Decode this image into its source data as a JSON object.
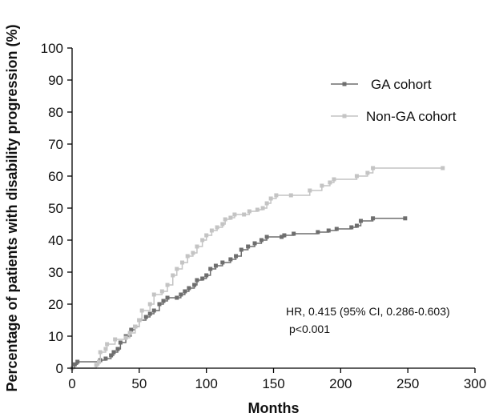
{
  "chart_data": {
    "type": "line",
    "title": "",
    "xlabel": "Months",
    "ylabel": "Percentage of patients with disability progression (%)",
    "xlim": [
      0,
      300
    ],
    "ylim": [
      0,
      100
    ],
    "x_ticks": [
      0,
      50,
      100,
      150,
      200,
      250,
      300
    ],
    "y_ticks": [
      0,
      10,
      20,
      30,
      40,
      50,
      60,
      70,
      80,
      90,
      100
    ],
    "grid": false,
    "legend_position": "top-right",
    "step": true,
    "series": [
      {
        "name": "GA cohort",
        "color": "#6e6e6e",
        "marker": "square",
        "points": [
          [
            0,
            0
          ],
          [
            2,
            1.2
          ],
          [
            4,
            2
          ],
          [
            20,
            2
          ],
          [
            21,
            2.5
          ],
          [
            25,
            3
          ],
          [
            29,
            4
          ],
          [
            31,
            5
          ],
          [
            34,
            6
          ],
          [
            36,
            8
          ],
          [
            40,
            10
          ],
          [
            44,
            12
          ],
          [
            47,
            13
          ],
          [
            50,
            15
          ],
          [
            55,
            16
          ],
          [
            58,
            17
          ],
          [
            61,
            18
          ],
          [
            65,
            20
          ],
          [
            68,
            21
          ],
          [
            71,
            22
          ],
          [
            78,
            22
          ],
          [
            81,
            23
          ],
          [
            84,
            24
          ],
          [
            87,
            25
          ],
          [
            91,
            26
          ],
          [
            93,
            27.5
          ],
          [
            97,
            28
          ],
          [
            100,
            29
          ],
          [
            103,
            31
          ],
          [
            107,
            32
          ],
          [
            112,
            33
          ],
          [
            118,
            34
          ],
          [
            122,
            35
          ],
          [
            126,
            37
          ],
          [
            131,
            38
          ],
          [
            136,
            39
          ],
          [
            141,
            40
          ],
          [
            145,
            41
          ],
          [
            156,
            41
          ],
          [
            158,
            41.5
          ],
          [
            165,
            42
          ],
          [
            183,
            42.5
          ],
          [
            191,
            43
          ],
          [
            197,
            43.5
          ],
          [
            208,
            44
          ],
          [
            212,
            44.5
          ],
          [
            215,
            46
          ],
          [
            224,
            46.8
          ],
          [
            248,
            46.8
          ]
        ]
      },
      {
        "name": "Non-GA cohort",
        "color": "#c4c4c4",
        "marker": "square",
        "points": [
          [
            0,
            0
          ],
          [
            18,
            1
          ],
          [
            20,
            2
          ],
          [
            21,
            5
          ],
          [
            25,
            6
          ],
          [
            26,
            7.5
          ],
          [
            32,
            9
          ],
          [
            40,
            9.5
          ],
          [
            43,
            11
          ],
          [
            47,
            13
          ],
          [
            50,
            15
          ],
          [
            52,
            18
          ],
          [
            58,
            20
          ],
          [
            61,
            23
          ],
          [
            67,
            24
          ],
          [
            71,
            26
          ],
          [
            75,
            29
          ],
          [
            78,
            31
          ],
          [
            82,
            33
          ],
          [
            86,
            35
          ],
          [
            90,
            36
          ],
          [
            93,
            38
          ],
          [
            97,
            40
          ],
          [
            100,
            41.5
          ],
          [
            104,
            43
          ],
          [
            108,
            44
          ],
          [
            112,
            45
          ],
          [
            114,
            46.5
          ],
          [
            118,
            47
          ],
          [
            121,
            48
          ],
          [
            128,
            48
          ],
          [
            132,
            49
          ],
          [
            138,
            49.5
          ],
          [
            142,
            50
          ],
          [
            145,
            51.5
          ],
          [
            148,
            53
          ],
          [
            152,
            54
          ],
          [
            163,
            54
          ],
          [
            177,
            55.5
          ],
          [
            186,
            57
          ],
          [
            192,
            58
          ],
          [
            195,
            59
          ],
          [
            212,
            60
          ],
          [
            220,
            61
          ],
          [
            224,
            62.5
          ],
          [
            276,
            62.5
          ]
        ]
      }
    ],
    "annotations": [
      "HR, 0.415 (95% CI, 0.286-0.603)",
      "p<0.001"
    ]
  }
}
